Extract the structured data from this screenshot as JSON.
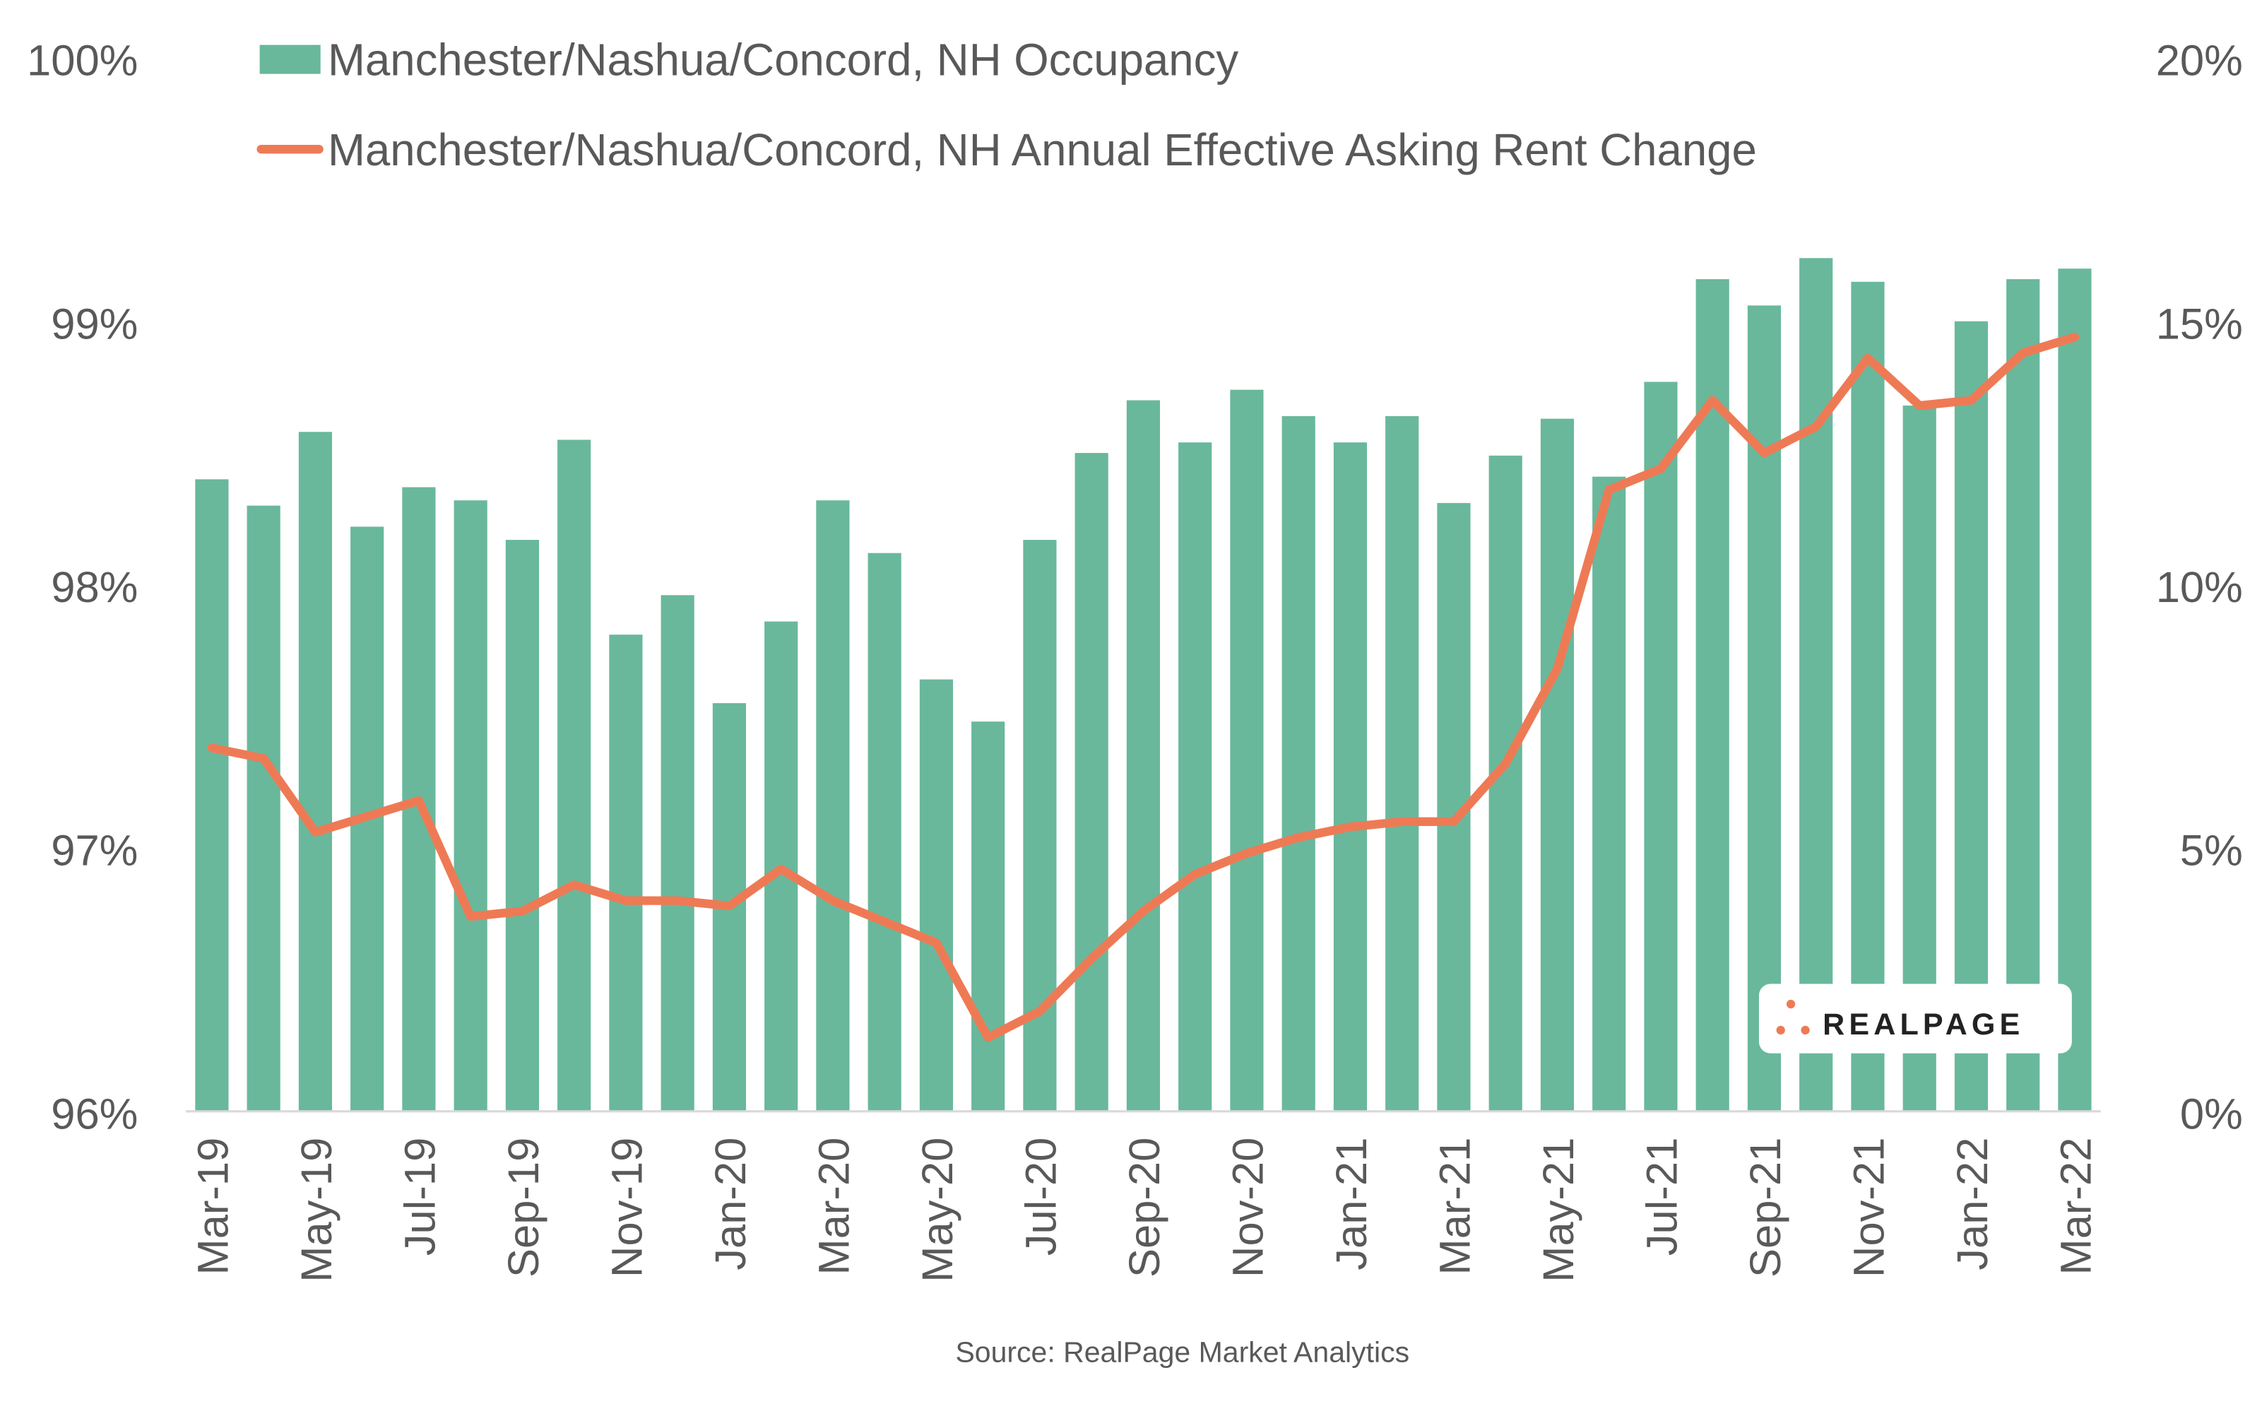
{
  "chart_data": {
    "type": "bar+line",
    "categories": [
      "Mar-19",
      "Apr-19",
      "May-19",
      "Jun-19",
      "Jul-19",
      "Aug-19",
      "Sep-19",
      "Oct-19",
      "Nov-19",
      "Dec-19",
      "Jan-20",
      "Feb-20",
      "Mar-20",
      "Apr-20",
      "May-20",
      "Jun-20",
      "Jul-20",
      "Aug-20",
      "Sep-20",
      "Oct-20",
      "Nov-20",
      "Dec-20",
      "Jan-21",
      "Feb-21",
      "Mar-21",
      "Apr-21",
      "May-21",
      "Jun-21",
      "Jul-21",
      "Aug-21",
      "Sep-21",
      "Oct-21",
      "Nov-21",
      "Dec-21",
      "Jan-22",
      "Feb-22",
      "Mar-22"
    ],
    "x_tick_labels": [
      "Mar-19",
      "May-19",
      "Jul-19",
      "Sep-19",
      "Nov-19",
      "Jan-20",
      "Mar-20",
      "May-20",
      "Jul-20",
      "Sep-20",
      "Nov-20",
      "Jan-21",
      "Mar-21",
      "May-21",
      "Jul-21",
      "Sep-21",
      "Nov-21",
      "Jan-22",
      "Mar-22"
    ],
    "series": [
      {
        "name": "Manchester/Nashua/Concord, NH Occupancy",
        "type": "bar",
        "axis": "left",
        "color": "#69b89c",
        "values": [
          98.4,
          98.3,
          98.58,
          98.22,
          98.37,
          98.32,
          98.17,
          98.55,
          97.81,
          97.96,
          97.55,
          97.86,
          98.32,
          98.12,
          97.64,
          97.48,
          98.17,
          98.5,
          98.7,
          98.54,
          98.74,
          98.64,
          98.54,
          98.64,
          98.31,
          98.49,
          98.63,
          98.41,
          98.77,
          99.16,
          99.06,
          99.24,
          99.15,
          98.68,
          99.0,
          99.16,
          99.2
        ]
      },
      {
        "name": "Manchester/Nashua/Concord, NH Annual Effective Asking Rent Change",
        "type": "line",
        "axis": "right",
        "color": "#ee7a55",
        "values": [
          6.9,
          6.7,
          5.3,
          5.6,
          5.9,
          3.7,
          3.8,
          4.3,
          4.0,
          4.0,
          3.9,
          4.6,
          4.0,
          3.6,
          3.2,
          1.4,
          1.9,
          2.9,
          3.8,
          4.5,
          4.9,
          5.2,
          5.4,
          5.5,
          5.5,
          6.6,
          8.4,
          11.8,
          12.2,
          13.5,
          12.5,
          13.0,
          14.3,
          13.4,
          13.5,
          14.4,
          14.7
        ]
      }
    ],
    "y_left": {
      "ylim": [
        96,
        100
      ],
      "ticks": [
        "96%",
        "97%",
        "98%",
        "99%",
        "100%"
      ]
    },
    "y_right": {
      "ylim": [
        0,
        20
      ],
      "ticks": [
        "0%",
        "5%",
        "10%",
        "15%",
        "20%"
      ]
    },
    "grid": false,
    "legend_position": "top",
    "source": "Source: RealPage Market Analytics",
    "logo_text": "REALPAGE"
  }
}
